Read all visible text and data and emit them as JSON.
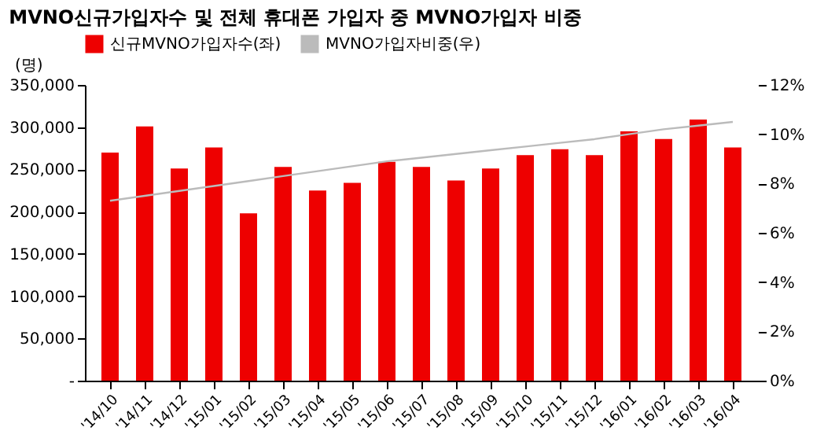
{
  "chart_data": {
    "type": "bar",
    "title": "MVNO신규가입자수 및 전체 휴대폰 가입자 중 MVNO가입자 비중",
    "ylabel": "(명)",
    "categories": [
      "'14/10",
      "'14/11",
      "'14/12",
      "'15/01",
      "'15/02",
      "'15/03",
      "'15/04",
      "'15/05",
      "'15/06",
      "'15/07",
      "'15/08",
      "'15/09",
      "'15/10",
      "'15/11",
      "'15/12",
      "'16/01",
      "'16/02",
      "'16/03",
      "'16/04"
    ],
    "series": [
      {
        "name": "신규MVNO가입자수(좌)",
        "color": "#ee0000",
        "values": [
          270000,
          301000,
          251000,
          276000,
          198000,
          253000,
          225000,
          234000,
          259000,
          253000,
          237000,
          251000,
          267000,
          274000,
          267000,
          295000,
          286000,
          309000,
          276000
        ]
      },
      {
        "name": "MVNO가입자비중(우)",
        "type": "line",
        "axis": "y2",
        "color": "#bbbbbb",
        "values": [
          7.3,
          7.5,
          7.7,
          7.9,
          8.1,
          8.3,
          8.5,
          8.7,
          8.9,
          9.05,
          9.2,
          9.35,
          9.5,
          9.65,
          9.8,
          10.0,
          10.2,
          10.35,
          10.5
        ]
      }
    ],
    "ylim": [
      0,
      350000
    ],
    "yticks": [
      {
        "value": 0,
        "label": "-"
      },
      {
        "value": 50000,
        "label": "50,000"
      },
      {
        "value": 100000,
        "label": "100,000"
      },
      {
        "value": 150000,
        "label": "150,000"
      },
      {
        "value": 200000,
        "label": "200,000"
      },
      {
        "value": 250000,
        "label": "250,000"
      },
      {
        "value": 300000,
        "label": "300,000"
      },
      {
        "value": 350000,
        "label": "350,000"
      }
    ],
    "y2lim": [
      0,
      12
    ],
    "y2ticks": [
      {
        "value": 0,
        "label": "0%"
      },
      {
        "value": 2,
        "label": "2%"
      },
      {
        "value": 4,
        "label": "4%"
      },
      {
        "value": 6,
        "label": "6%"
      },
      {
        "value": 8,
        "label": "8%"
      },
      {
        "value": 10,
        "label": "10%"
      },
      {
        "value": 12,
        "label": "12%"
      }
    ],
    "legend": "top",
    "grid": false
  }
}
